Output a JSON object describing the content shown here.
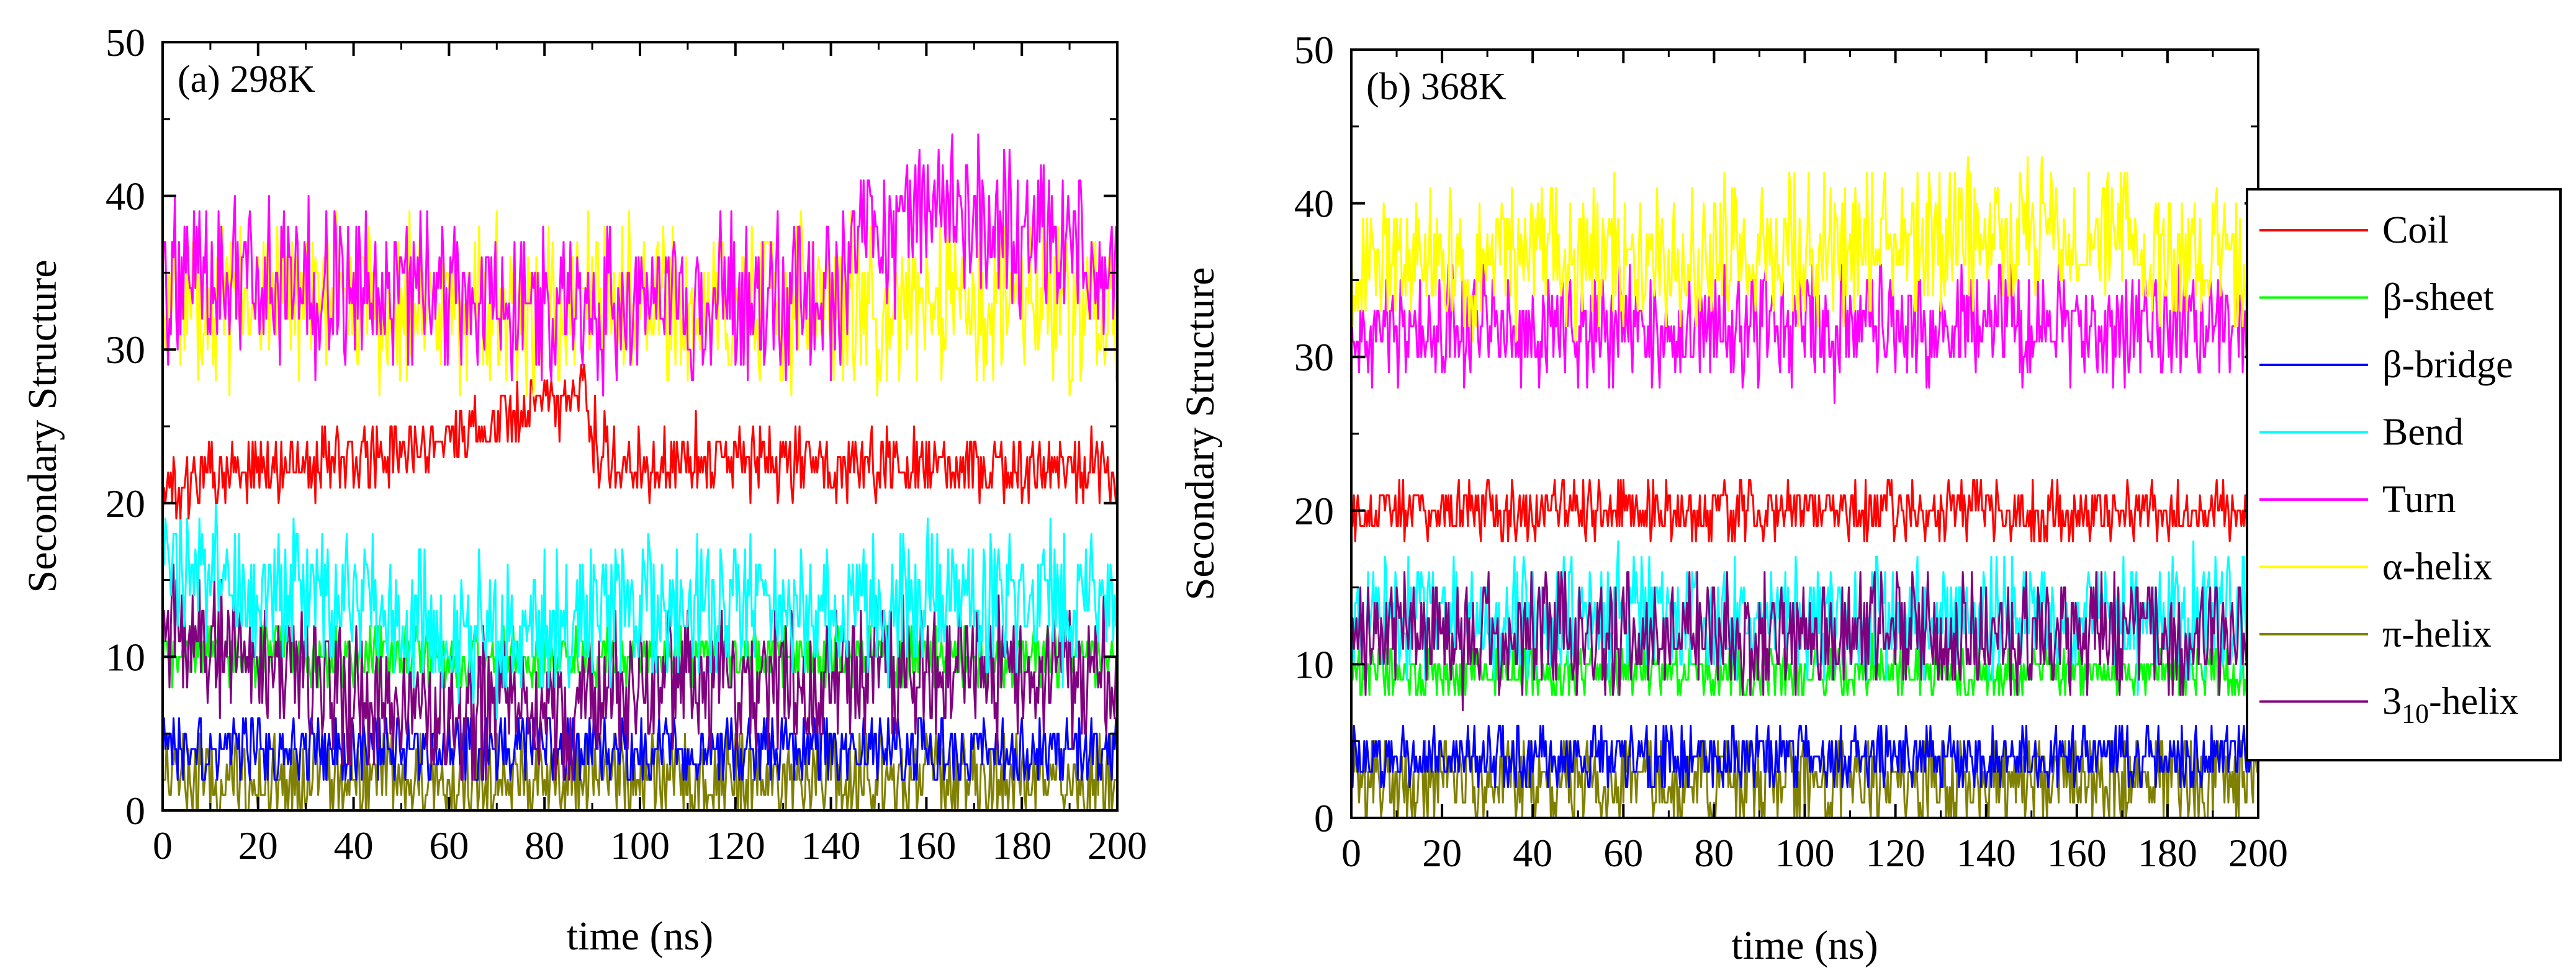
{
  "chart_data": [
    {
      "type": "line",
      "panel_label": "(a) 298K",
      "xlabel": "time (ns)",
      "ylabel": "Secondary Structure",
      "xlim": [
        0,
        200
      ],
      "ylim": [
        0,
        50
      ],
      "xticks": [
        "0",
        "20",
        "40",
        "60",
        "80",
        "100",
        "120",
        "140",
        "160",
        "180",
        "200"
      ],
      "yticks": [
        "0",
        "10",
        "20",
        "30",
        "40",
        "50"
      ],
      "grid": false,
      "series": [
        {
          "name": "π-helix",
          "color": "#808000",
          "base": [
            [
              0,
              2
            ],
            [
              200,
              2
            ]
          ],
          "spread": 2.5,
          "min": 0,
          "max": 5,
          "seed": 7
        },
        {
          "name": "β-bridge",
          "color": "#0000ff",
          "base": [
            [
              0,
              4
            ],
            [
              200,
              4
            ]
          ],
          "spread": 1.8,
          "min": 2,
          "max": 6,
          "seed": 3
        },
        {
          "name": "β-sheet",
          "color": "#00ff00",
          "base": [
            [
              0,
              10
            ],
            [
              200,
              10
            ]
          ],
          "spread": 1.5,
          "min": 8,
          "max": 12,
          "seed": 2
        },
        {
          "name": "3₁₀-helix",
          "color": "#800080",
          "base": [
            [
              0,
              12
            ],
            [
              30,
              8
            ],
            [
              60,
              6
            ],
            [
              90,
              7
            ],
            [
              100,
              9
            ],
            [
              200,
              9
            ]
          ],
          "spread": 3.5,
          "min": 0,
          "max": 16,
          "seed": 8
        },
        {
          "name": "Bend",
          "color": "#00ffff",
          "base": [
            [
              0,
              16
            ],
            [
              50,
              13
            ],
            [
              70,
              11
            ],
            [
              90,
              13
            ],
            [
              200,
              14
            ]
          ],
          "spread": 3.5,
          "min": 5,
          "max": 22,
          "seed": 4
        },
        {
          "name": "Coil",
          "color": "#ff0000",
          "base": [
            [
              0,
              21
            ],
            [
              40,
              23
            ],
            [
              60,
              24
            ],
            [
              75,
              26
            ],
            [
              88,
              27
            ],
            [
              92,
              23
            ],
            [
              200,
              22
            ]
          ],
          "spread": 1.8,
          "min": 18,
          "max": 29,
          "seed": 1
        },
        {
          "name": "α-helix",
          "color": "#ffff00",
          "base": [
            [
              0,
              33
            ],
            [
              100,
              33
            ],
            [
              200,
              33
            ]
          ],
          "spread": 4,
          "min": 24,
          "max": 44,
          "seed": 6
        },
        {
          "name": "Turn",
          "color": "#ff00ff",
          "base": [
            [
              0,
              35
            ],
            [
              40,
              34
            ],
            [
              100,
              33
            ],
            [
              140,
              34
            ],
            [
              160,
              40
            ],
            [
              180,
              38
            ],
            [
              200,
              35
            ]
          ],
          "spread": 4,
          "min": 22,
          "max": 52,
          "seed": 5
        }
      ]
    },
    {
      "type": "line",
      "panel_label": "(b) 368K",
      "xlabel": "time (ns)",
      "ylabel": "Secondary Structure",
      "xlim": [
        0,
        200
      ],
      "ylim": [
        0,
        50
      ],
      "xticks": [
        "0",
        "20",
        "40",
        "60",
        "80",
        "100",
        "120",
        "140",
        "160",
        "180",
        "200"
      ],
      "yticks": [
        "0",
        "10",
        "20",
        "30",
        "40",
        "50"
      ],
      "grid": false,
      "series": [
        {
          "name": "π-helix",
          "color": "#808000",
          "base": [
            [
              0,
              2.5
            ],
            [
              200,
              2.5
            ]
          ],
          "spread": 2.5,
          "min": 0,
          "max": 5,
          "seed": 17
        },
        {
          "name": "β-bridge",
          "color": "#0000ff",
          "base": [
            [
              0,
              4
            ],
            [
              200,
              4
            ]
          ],
          "spread": 1.6,
          "min": 2,
          "max": 6,
          "seed": 13
        },
        {
          "name": "β-sheet",
          "color": "#00ff00",
          "base": [
            [
              0,
              9.5
            ],
            [
              200,
              9.5
            ]
          ],
          "spread": 1.3,
          "min": 8,
          "max": 12,
          "seed": 12
        },
        {
          "name": "Bend",
          "color": "#00ffff",
          "base": [
            [
              0,
              13
            ],
            [
              200,
              13
            ]
          ],
          "spread": 3,
          "min": 5,
          "max": 19,
          "seed": 14
        },
        {
          "name": "3₁₀-helix",
          "color": "#800080",
          "base": [
            [
              0,
              12
            ],
            [
              200,
              12
            ]
          ],
          "spread": 3,
          "min": 0,
          "max": 16,
          "seed": 18
        },
        {
          "name": "Coil",
          "color": "#ff0000",
          "base": [
            [
              0,
              20
            ],
            [
              200,
              20
            ]
          ],
          "spread": 1.5,
          "min": 17,
          "max": 25,
          "seed": 11
        },
        {
          "name": "Turn",
          "color": "#ff00ff",
          "base": [
            [
              0,
              32
            ],
            [
              200,
              32
            ]
          ],
          "spread": 3,
          "min": 24,
          "max": 38,
          "seed": 15
        },
        {
          "name": "α-helix",
          "color": "#ffff00",
          "base": [
            [
              0,
              36
            ],
            [
              100,
              37
            ],
            [
              150,
              38
            ],
            [
              200,
              36
            ]
          ],
          "spread": 3.5,
          "min": 28,
          "max": 48,
          "seed": 16
        }
      ]
    }
  ],
  "legend": {
    "placement": "right of panel (b), upper-middle",
    "entries": [
      {
        "name": "Coil",
        "color": "#ff0000"
      },
      {
        "name": "β-sheet",
        "color": "#00ff00"
      },
      {
        "name": "β-bridge",
        "color": "#0000ff"
      },
      {
        "name": "Bend",
        "color": "#00ffff"
      },
      {
        "name": "Turn",
        "color": "#ff00ff"
      },
      {
        "name": "α-helix",
        "color": "#ffff00"
      },
      {
        "name": "π-helix",
        "color": "#808000"
      },
      {
        "name": "3₁₀-helix",
        "color": "#800080"
      }
    ]
  }
}
